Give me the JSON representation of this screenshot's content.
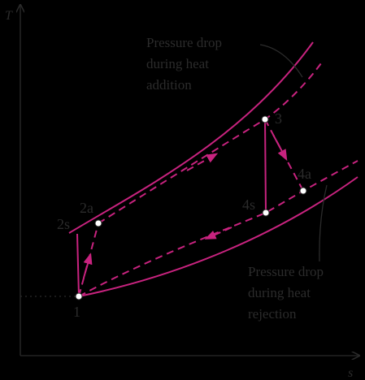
{
  "axes": {
    "y_label": "T",
    "x_label": "s"
  },
  "states": [
    {
      "label": "1"
    },
    {
      "label": "2s"
    },
    {
      "label": "2a"
    },
    {
      "label": "3"
    },
    {
      "label": "4s"
    },
    {
      "label": "4a"
    }
  ],
  "annotations": [
    {
      "lines": [
        "Pressure drop",
        "during heat",
        "addition"
      ]
    },
    {
      "lines": [
        "Pressure drop",
        "during heat",
        "rejection"
      ]
    }
  ]
}
